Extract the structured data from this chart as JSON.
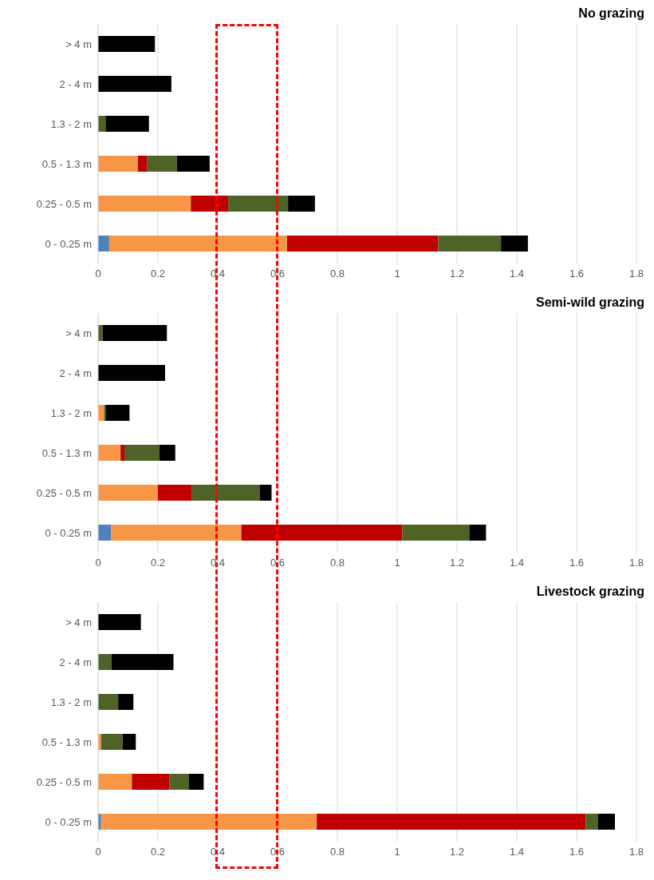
{
  "chart_data": [
    {
      "type": "bar",
      "orientation": "horizontal",
      "stacked": true,
      "title": "No grazing",
      "categories": [
        "> 4 m",
        "2 - 4 m",
        "1.3 - 2 m",
        "0.5 - 1.3 m",
        "0.25 - 0.5 m",
        "0 - 0.25 m"
      ],
      "xlim": [
        0,
        1.8
      ],
      "xticks": [
        0,
        0.2,
        0.4,
        0.6,
        0.8,
        1,
        1.2,
        1.4,
        1.6,
        1.8
      ],
      "grid": "x",
      "series": [
        {
          "color": "#4f81bd",
          "values": [
            0,
            0,
            0,
            0,
            0,
            0.037
          ]
        },
        {
          "color": "#f79646",
          "values": [
            0,
            0,
            0,
            0.133,
            0.31,
            0.595
          ]
        },
        {
          "color": "#c00000",
          "values": [
            0,
            0,
            0,
            0.03,
            0.125,
            0.505
          ]
        },
        {
          "color": "#4f6228",
          "values": [
            0,
            0,
            0.025,
            0.1,
            0.2,
            0.21
          ]
        },
        {
          "color": "#000000",
          "values": [
            0.19,
            0.245,
            0.145,
            0.11,
            0.09,
            0.09
          ]
        }
      ]
    },
    {
      "type": "bar",
      "orientation": "horizontal",
      "stacked": true,
      "title": "Semi-wild grazing",
      "categories": [
        "> 4 m",
        "2 - 4 m",
        "1.3 - 2 m",
        "0.5 - 1.3 m",
        "0.25 - 0.5 m",
        "0 - 0.25 m"
      ],
      "xlim": [
        0,
        1.8
      ],
      "xticks": [
        0,
        0.2,
        0.4,
        0.6,
        0.8,
        1,
        1.2,
        1.4,
        1.6,
        1.8
      ],
      "grid": "x",
      "series": [
        {
          "color": "#4f81bd",
          "values": [
            0,
            0,
            0,
            0,
            0,
            0.043
          ]
        },
        {
          "color": "#f79646",
          "values": [
            0,
            0,
            0.02,
            0.075,
            0.2,
            0.436
          ]
        },
        {
          "color": "#c00000",
          "values": [
            0,
            0,
            0,
            0.013,
            0.114,
            0.538
          ]
        },
        {
          "color": "#4f6228",
          "values": [
            0.015,
            0,
            0.005,
            0.117,
            0.226,
            0.224
          ]
        },
        {
          "color": "#000000",
          "values": [
            0.215,
            0.224,
            0.08,
            0.053,
            0.04,
            0.056
          ]
        }
      ]
    },
    {
      "type": "bar",
      "orientation": "horizontal",
      "stacked": true,
      "title": "Livestock grazing",
      "categories": [
        "> 4 m",
        "2 - 4 m",
        "1.3 - 2 m",
        "0.5 - 1.3 m",
        "0.25 - 0.5 m",
        "0 - 0.25 m"
      ],
      "xlim": [
        0,
        1.8
      ],
      "xticks": [
        0,
        0.2,
        0.4,
        0.6,
        0.8,
        1,
        1.2,
        1.4,
        1.6,
        1.8
      ],
      "grid": "x",
      "series": [
        {
          "color": "#4f81bd",
          "values": [
            0,
            0,
            0,
            0,
            0,
            0.01
          ]
        },
        {
          "color": "#f79646",
          "values": [
            0,
            0,
            0,
            0.01,
            0.113,
            0.721
          ]
        },
        {
          "color": "#c00000",
          "values": [
            0,
            0,
            0,
            0,
            0.126,
            0.899
          ]
        },
        {
          "color": "#4f6228",
          "values": [
            0,
            0.045,
            0.067,
            0.072,
            0.065,
            0.042
          ]
        },
        {
          "color": "#000000",
          "values": [
            0.143,
            0.207,
            0.051,
            0.044,
            0.049,
            0.056
          ]
        }
      ]
    }
  ]
}
